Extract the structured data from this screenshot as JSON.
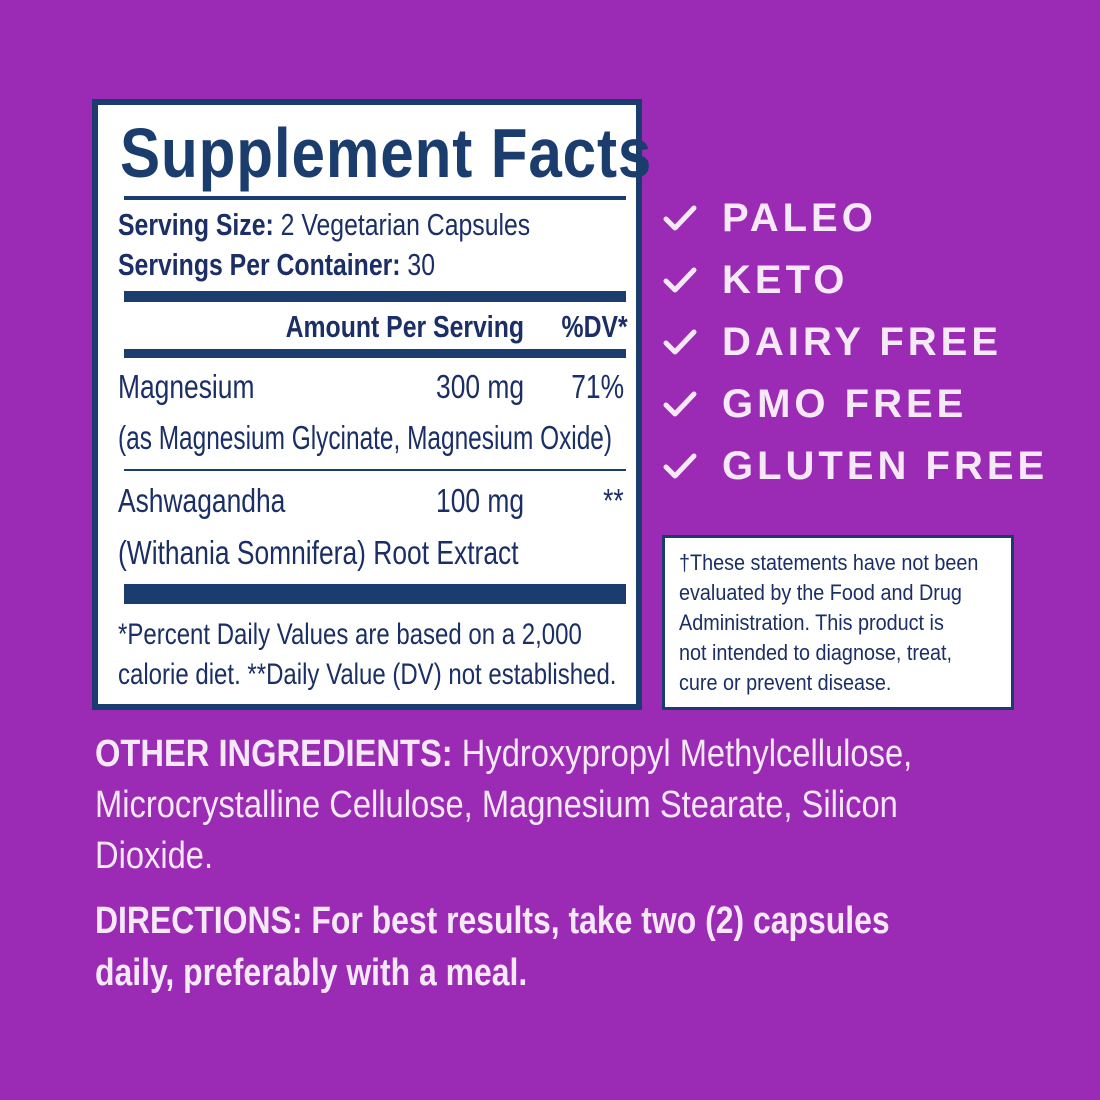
{
  "colors": {
    "background": "#9b2bb5",
    "navy": "#1b3d6e",
    "light_text": "#f5e8f7"
  },
  "facts": {
    "title": "Supplement Facts",
    "serving_size_label": "Serving Size:",
    "serving_size_value": " 2 Vegetarian Capsules",
    "servings_label": "Servings Per Container:",
    "servings_value": " 30",
    "amount_header": "Amount Per Serving",
    "dv_header": "%DV*",
    "rows": [
      {
        "name": "Magnesium",
        "amount": "300 mg",
        "dv": "71%",
        "detail": "(as Magnesium Glycinate, Magnesium Oxide)"
      },
      {
        "name": "Ashwagandha",
        "amount": "100 mg",
        "dv": "**",
        "detail": "(Withania Somnifera) Root Extract"
      }
    ],
    "footnote_1": "*Percent Daily Values are based on a 2,000",
    "footnote_2": "calorie diet. **Daily Value (DV) not established."
  },
  "claims": [
    {
      "label": "PALEO",
      "icon": "check-icon"
    },
    {
      "label": "KETO",
      "icon": "check-icon"
    },
    {
      "label": "DAIRY FREE",
      "icon": "check-icon"
    },
    {
      "label": "GMO FREE",
      "icon": "check-icon"
    },
    {
      "label": "GLUTEN FREE",
      "icon": "check-icon"
    }
  ],
  "disclaimer": [
    "†These statements have not been",
    "evaluated by the Food and Drug",
    "Administration. This product is",
    "not intended to diagnose, treat,",
    "cure or prevent disease."
  ],
  "other_ingredients": {
    "label": "OTHER INGREDIENTS:",
    "lines": [
      " Hydroxypropyl Methylcellulose,",
      "Microcrystalline Cellulose, Magnesium Stearate, Silicon",
      "Dioxide."
    ]
  },
  "directions": {
    "label": "DIRECTIONS:",
    "lines": [
      " For best results, take two (2) capsules",
      "daily, preferably with a meal."
    ]
  }
}
